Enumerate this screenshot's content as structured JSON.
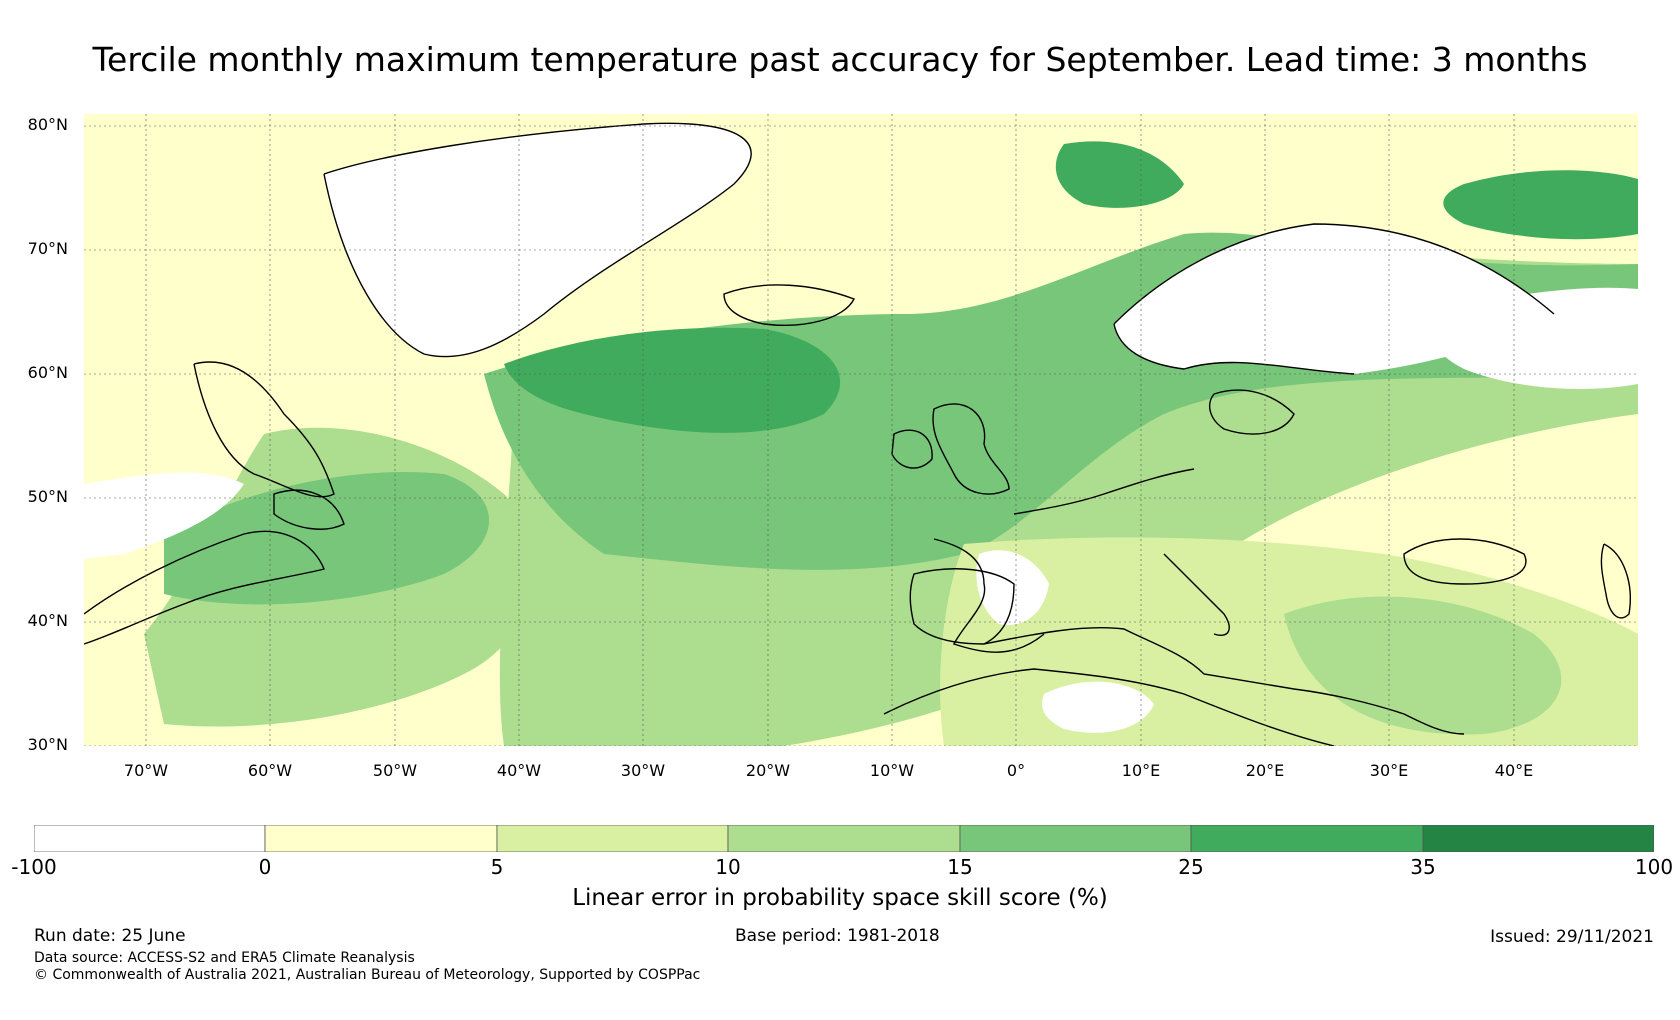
{
  "title": "Tercile monthly maximum temperature past accuracy for September. Lead time: 3 months",
  "map": {
    "lat_labels": [
      "80°N",
      "70°N",
      "60°N",
      "50°N",
      "40°N",
      "30°N"
    ],
    "lon_labels": [
      "70°W",
      "60°W",
      "50°W",
      "40°W",
      "30°W",
      "20°W",
      "10°W",
      "0°",
      "10°E",
      "20°E",
      "30°E",
      "40°E"
    ],
    "lon_range": [
      -75,
      50
    ],
    "lat_range": [
      29,
      81
    ],
    "gridlines": true,
    "land_mask_shown_for_low_skill": true
  },
  "colorbar": {
    "ticks": [
      "-100",
      "0",
      "5",
      "10",
      "15",
      "25",
      "35",
      "100"
    ],
    "colors": [
      "#ffffff",
      "#ffffcc",
      "#d9f0a3",
      "#addd8e",
      "#78c679",
      "#41ab5d",
      "#238443"
    ],
    "label": "Linear error in probability space skill score (%)"
  },
  "footer": {
    "run_date": "Run date: 25 June",
    "base_period": "Base period: 1981-2018",
    "issued": "Issued: 29/11/2021",
    "data_source": "Data source: ACCESS-S2 and ERA5 Climate Reanalysis",
    "copyright": "© Commonwealth of Australia 2021, Australian Bureau of Meteorology, Supported by COSPPac"
  }
}
